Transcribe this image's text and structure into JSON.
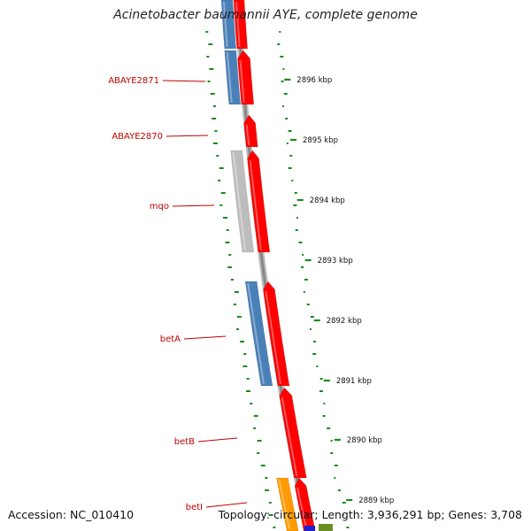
{
  "title": "Acinetobacter baumannii AYE, complete genome",
  "footer": {
    "accession": "Accession: NC_010410",
    "summary": "Topology: circular; Length: 3,936,291 bp; Genes: 3,708"
  },
  "colors": {
    "forward_cds": "#ff0000",
    "reverse_cds_blue": "#4a80b8",
    "reverse_cds_grey": "#bdbdbd",
    "reverse_cds_orange": "#ff9a00",
    "backbone": "#888888",
    "gc_ticks": "#1a8a1a",
    "gene_label": "#c00000"
  },
  "kbp_ticks": [
    {
      "label": "2896 kbp"
    },
    {
      "label": "2895 kbp"
    },
    {
      "label": "2894 kbp"
    },
    {
      "label": "2893 kbp"
    },
    {
      "label": "2892 kbp"
    },
    {
      "label": "2891 kbp"
    },
    {
      "label": "2890 kbp"
    },
    {
      "label": "2889 kbp"
    }
  ],
  "gene_labels": [
    {
      "name": "ABAYE2871"
    },
    {
      "name": "ABAYE2870"
    },
    {
      "name": "mqo"
    },
    {
      "name": "betA"
    },
    {
      "name": "betB"
    },
    {
      "name": "betI"
    }
  ]
}
